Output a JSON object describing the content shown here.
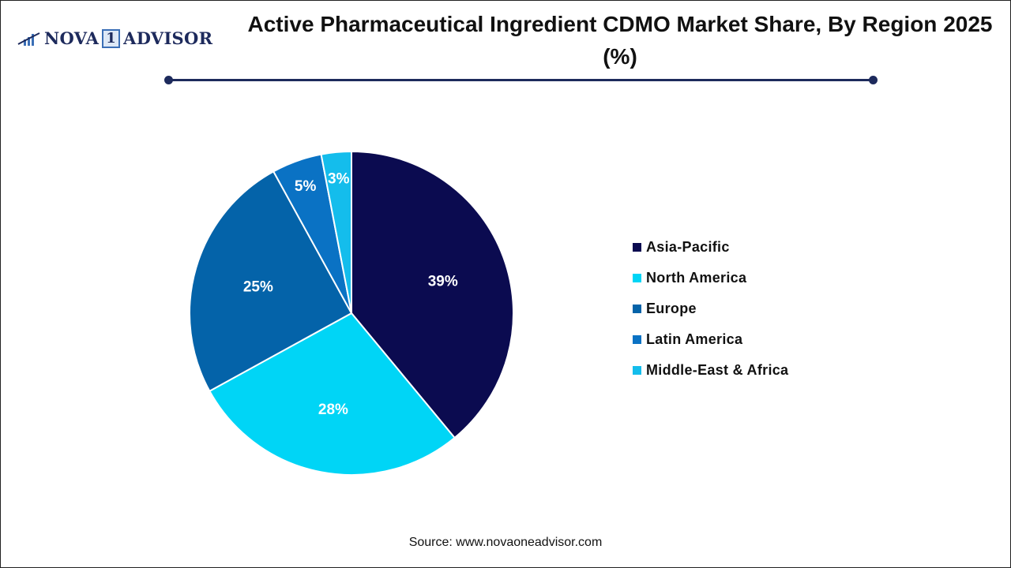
{
  "logo": {
    "text_left": "NOVA",
    "text_box": "1",
    "text_right": "ADVISOR"
  },
  "title": "Active Pharmaceutical Ingredient CDMO Market Share, By Region 2025 (%)",
  "source": "Source: www.novaoneadvisor.com",
  "chart_data": {
    "type": "pie",
    "title": "Active Pharmaceutical Ingredient CDMO Market Share, By Region 2025 (%)",
    "legend_position": "right",
    "start": "top, clockwise",
    "slices": [
      {
        "label": "Asia-Pacific",
        "value": 39,
        "display": "39%",
        "color": "#0b0b50"
      },
      {
        "label": "North America",
        "value": 28,
        "display": "28%",
        "color": "#00d5f6"
      },
      {
        "label": "Europe",
        "value": 25,
        "display": "25%",
        "color": "#0463a9"
      },
      {
        "label": "Latin America",
        "value": 5,
        "display": "5%",
        "color": "#0a72c4"
      },
      {
        "label": "Middle-East & Africa",
        "value": 3,
        "display": "3%",
        "color": "#14bdec"
      }
    ]
  }
}
